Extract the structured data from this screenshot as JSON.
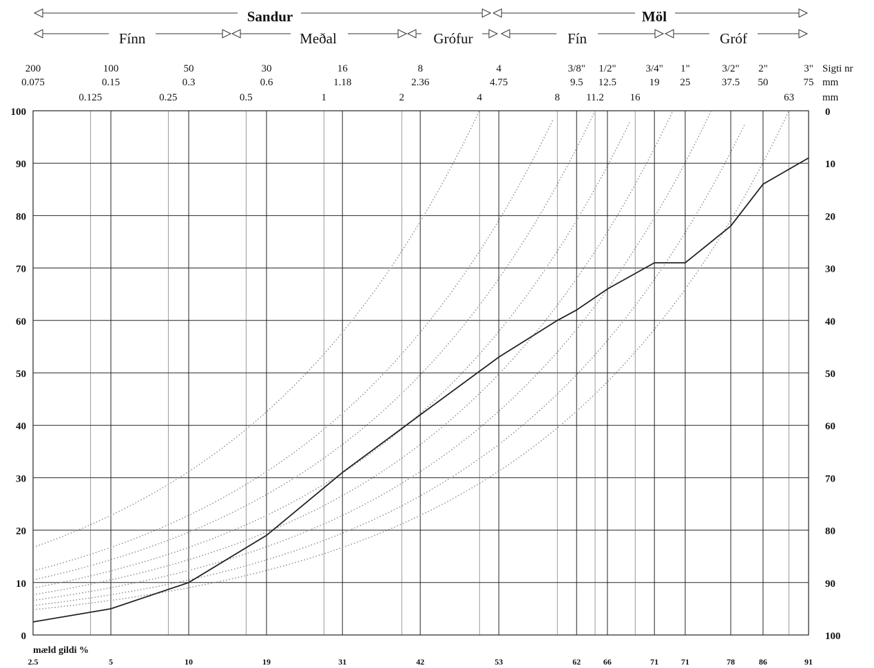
{
  "chart_data": {
    "type": "line",
    "header": {
      "top_groups": [
        "Sandur",
        "Möl"
      ],
      "sub_groups": [
        "Fínn",
        "Meðal",
        "Grófur",
        "Fín",
        "Gróf"
      ]
    },
    "x_scale": "log",
    "xlim_mm": [
      0.075,
      75
    ],
    "sieve_numbers": [
      {
        "label": "200",
        "mm": 0.075
      },
      {
        "label": "100",
        "mm": 0.15
      },
      {
        "label": "50",
        "mm": 0.3
      },
      {
        "label": "30",
        "mm": 0.6
      },
      {
        "label": "16",
        "mm": 1.18
      },
      {
        "label": "8",
        "mm": 2.36
      },
      {
        "label": "4",
        "mm": 4.75
      },
      {
        "label": "3/8\"",
        "mm": 9.5
      },
      {
        "label": "1/2\"",
        "mm": 12.5
      },
      {
        "label": "3/4\"",
        "mm": 19
      },
      {
        "label": "1\"",
        "mm": 25
      },
      {
        "label": "3/2\"",
        "mm": 37.5
      },
      {
        "label": "2\"",
        "mm": 50
      },
      {
        "label": "3\"",
        "mm": 75
      }
    ],
    "sieve_mm_labels": [
      "0.075",
      "0.15",
      "0.3",
      "0.6",
      "1.18",
      "2.36",
      "4.75",
      "9.5",
      "12.5",
      "19",
      "25",
      "37.5",
      "50",
      "75"
    ],
    "extra_sizes": [
      {
        "label": "0.125",
        "mm": 0.125
      },
      {
        "label": "0.25",
        "mm": 0.25
      },
      {
        "label": "0.5",
        "mm": 0.5
      },
      {
        "label": "1",
        "mm": 1
      },
      {
        "label": "2",
        "mm": 2
      },
      {
        "label": "4",
        "mm": 4
      },
      {
        "label": "8",
        "mm": 8
      },
      {
        "label": "11.2",
        "mm": 11.2
      },
      {
        "label": "16",
        "mm": 16
      },
      {
        "label": "63",
        "mm": 63
      }
    ],
    "right_labels": {
      "sieve": "Sigti nr",
      "mm1": "mm",
      "mm2": "mm"
    },
    "ylim": [
      0,
      100
    ],
    "y_ticks_left": [
      0,
      10,
      20,
      30,
      40,
      50,
      60,
      70,
      80,
      90,
      100
    ],
    "y_ticks_right": [
      100,
      90,
      80,
      70,
      60,
      50,
      40,
      30,
      20,
      10,
      0
    ],
    "grid": true,
    "measured_title": "mæld gildi %",
    "measured_labels": [
      "2.5",
      "5",
      "10",
      "19",
      "31",
      "42",
      "53",
      "62",
      "66",
      "71",
      "71",
      "78",
      "86",
      "91"
    ],
    "series": [
      {
        "points": [
          {
            "mm": 0.075,
            "y": 2.5
          },
          {
            "mm": 0.15,
            "y": 5
          },
          {
            "mm": 0.3,
            "y": 10
          },
          {
            "mm": 0.6,
            "y": 19
          },
          {
            "mm": 1.18,
            "y": 31
          },
          {
            "mm": 2.36,
            "y": 42
          },
          {
            "mm": 4.75,
            "y": 53
          },
          {
            "mm": 8,
            "y": 60
          },
          {
            "mm": 9.5,
            "y": 62
          },
          {
            "mm": 12.5,
            "y": 66
          },
          {
            "mm": 19,
            "y": 71
          },
          {
            "mm": 25,
            "y": 71
          },
          {
            "mm": 37.5,
            "y": 78
          },
          {
            "mm": 50,
            "y": 86
          },
          {
            "mm": 75,
            "y": 91
          }
        ]
      }
    ],
    "reference_curves_dmax_mm": [
      4,
      8,
      11.2,
      16,
      22.4,
      31.5,
      45,
      63
    ],
    "colors": {
      "line": "#222222",
      "grid": "#222222",
      "reference": "#888888"
    }
  }
}
